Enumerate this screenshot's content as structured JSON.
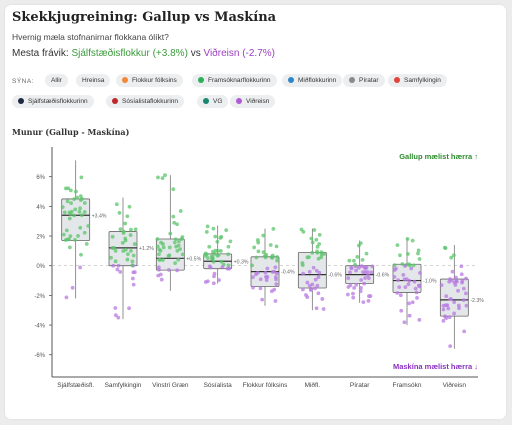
{
  "header": {
    "title": "Skekkjugreining: Gallup vs Maskína",
    "subtitle": "Hvernig mæla stofnanirnar flokkana ólíkt?",
    "maxdiff_label": "Mesta frávik:",
    "maxdiff_pos": "Sjálfstæðisflokkur (+3.8%)",
    "maxdiff_vs": "vs",
    "maxdiff_neg": "Viðreisn (-2.7%)"
  },
  "filters": {
    "label": "SÝNA:",
    "all": "Allir",
    "clear": "Hreinsa",
    "parties": [
      {
        "label": "Flokkur fólksins",
        "color": "#f0883a"
      },
      {
        "label": "Framsóknarflokkurinn",
        "color": "#2fae5a"
      },
      {
        "label": "Miðflokkurinn",
        "color": "#2f86c9"
      },
      {
        "label": "Píratar",
        "color": "#8a8a8a"
      },
      {
        "label": "Samfylkingin",
        "color": "#e0453a"
      },
      {
        "label": "Sjálfstæðisflokkurinn",
        "color": "#1e2a44"
      },
      {
        "label": "Sósíalistaflokkurinn",
        "color": "#c0262a"
      },
      {
        "label": "VG",
        "color": "#17876f"
      },
      {
        "label": "Viðreisn",
        "color": "#b05ad6"
      }
    ]
  },
  "chart_data": {
    "type": "box",
    "title": "Munur (Gallup - Maskína)",
    "ylabel": "Munur (Gallup - Maskína)",
    "ylim": [
      -7.5,
      8
    ],
    "y_ticks": [
      "6%",
      "4%",
      "2%",
      "0%",
      "-2%",
      "-4%",
      "-6%"
    ],
    "annotation_top": "Gallup mælist hærra ↑",
    "annotation_bottom": "Maskína mælist hærra ↓",
    "positive_color": "#5cc46b",
    "negative_color": "#b77ae0",
    "categories": [
      "Sjálfstæðisfl.",
      "Samfylkingin",
      "Vinstri Græn",
      "Sósíalista",
      "Flokkur fólksins",
      "Miðfl.",
      "Píratar",
      "Framsókn",
      "Viðreisn"
    ],
    "mean_labels": [
      "+3.4%",
      "+1.2%",
      "+0.5%",
      "+0.3%",
      "-0.4%",
      "-0.6%",
      "-0.6%",
      "-1.0%",
      "-2.3%"
    ],
    "boxes": [
      {
        "min": -2.2,
        "q1": 1.7,
        "median": 3.4,
        "q3": 4.5,
        "max": 7.1
      },
      {
        "min": -3.6,
        "q1": 0.0,
        "median": 1.2,
        "q3": 2.3,
        "max": 4.6
      },
      {
        "min": -1.7,
        "q1": -0.3,
        "median": 0.5,
        "q3": 1.8,
        "max": 6.1
      },
      {
        "min": -1.2,
        "q1": -0.2,
        "median": 0.3,
        "q3": 0.8,
        "max": 2.7
      },
      {
        "min": -2.7,
        "q1": -1.4,
        "median": -0.4,
        "q3": 0.6,
        "max": 2.5
      },
      {
        "min": -3.0,
        "q1": -1.5,
        "median": -0.6,
        "q3": 0.9,
        "max": 2.5
      },
      {
        "min": -2.5,
        "q1": -1.2,
        "median": -0.6,
        "q3": 0.0,
        "max": 1.7
      },
      {
        "min": -4.0,
        "q1": -1.8,
        "median": -1.0,
        "q3": 0.1,
        "max": 1.9
      },
      {
        "min": -5.6,
        "q1": -3.4,
        "median": -2.3,
        "q3": -0.9,
        "max": 1.4
      }
    ]
  }
}
